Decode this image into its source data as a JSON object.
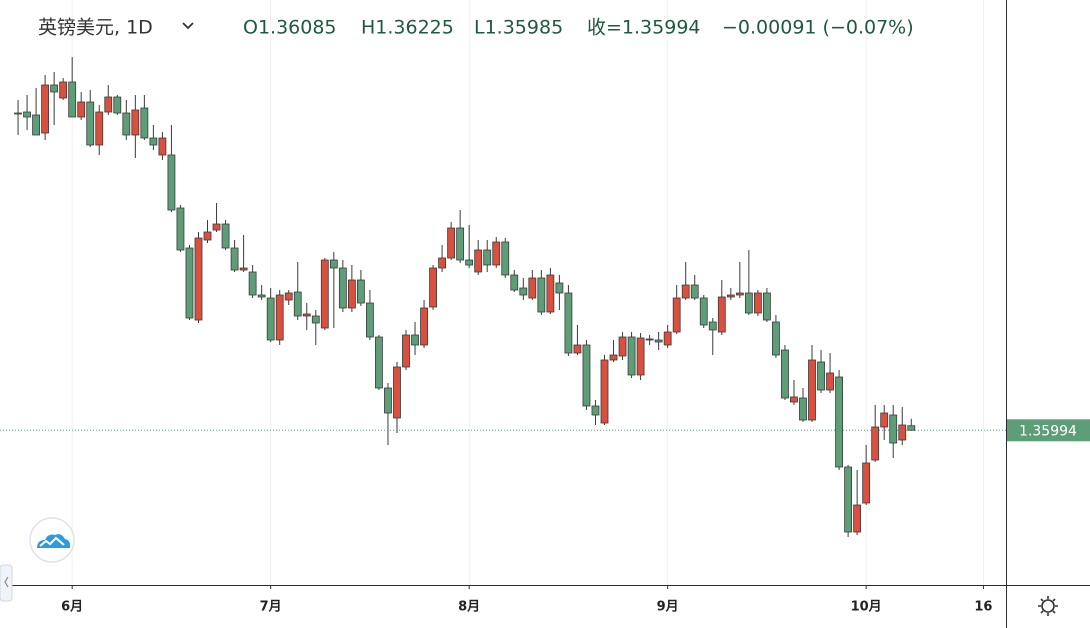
{
  "chart_data": {
    "type": "candlestick",
    "title": "英镑美元, 1D",
    "header_labels": [
      "O1.36085",
      "H1.36225",
      "L1.35985",
      "收=1.35994",
      "−0.00091 (−0.07%)"
    ],
    "up_color": "#d9503f",
    "down_color": "#5d9e79",
    "xlim": [
      -2,
      109.5
    ],
    "xticks": [
      {
        "value": 6,
        "label": "6月"
      },
      {
        "value": 28,
        "label": "7月"
      },
      {
        "value": 50,
        "label": "8月"
      },
      {
        "value": 72,
        "label": "9月"
      },
      {
        "value": 94,
        "label": "10月"
      },
      {
        "value": 107,
        "label": "16"
      }
    ],
    "ylim": [
      1.329,
      1.446
    ],
    "grid": true,
    "x": [
      0,
      1,
      2,
      3,
      4,
      5,
      6,
      7,
      8,
      9,
      10,
      11,
      12,
      13,
      14,
      15,
      16,
      17,
      18,
      19,
      20,
      21,
      22,
      23,
      24,
      25,
      26,
      27,
      28,
      29,
      30,
      31,
      32,
      33,
      34,
      35,
      36,
      37,
      38,
      39,
      40,
      41,
      42,
      43,
      44,
      45,
      46,
      47,
      48,
      49,
      50,
      51,
      52,
      53,
      54,
      55,
      56,
      57,
      58,
      59,
      60,
      61,
      62,
      63,
      64,
      65,
      66,
      67,
      68,
      69,
      70,
      71,
      72,
      73,
      74,
      75,
      76,
      77,
      78,
      79,
      80,
      81,
      82,
      83,
      84,
      85,
      86,
      87,
      88,
      89,
      90,
      91,
      92,
      93,
      94,
      95,
      96,
      97,
      98,
      99
    ],
    "open": [
      1.4234,
      1.4236,
      1.423,
      1.4194,
      1.429,
      1.4264,
      1.4296,
      1.4226,
      1.4256,
      1.417,
      1.4236,
      1.4266,
      1.4234,
      1.419,
      1.4244,
      1.4184,
      1.415,
      1.415,
      1.4044,
      1.3964,
      1.382,
      1.398,
      1.4,
      1.4012,
      1.3964,
      1.392,
      1.3916,
      1.387,
      1.3864,
      1.378,
      1.386,
      1.3876,
      1.3828,
      1.3828,
      1.3804,
      1.394,
      1.3924,
      1.3844,
      1.39,
      1.3854,
      1.3786,
      1.3684,
      1.3624,
      1.3726,
      1.379,
      1.377,
      1.3846,
      1.3924,
      1.3944,
      1.4004,
      1.394,
      1.3916,
      1.396,
      1.393,
      1.3976,
      1.391,
      1.3884,
      1.3864,
      1.3904,
      1.3836,
      1.3894,
      1.3874,
      1.3754,
      1.377,
      1.3648,
      1.3614,
      1.374,
      1.3748,
      1.3786,
      1.371,
      1.378,
      1.378,
      1.377,
      1.3796,
      1.3864,
      1.389,
      1.3864,
      1.3816,
      1.3796,
      1.3866,
      1.387,
      1.3874,
      1.3834,
      1.3874,
      1.3816,
      1.376,
      1.3656,
      1.3664,
      1.362,
      1.3736,
      1.368,
      1.3706,
      1.3526,
      1.3396,
      1.3454,
      1.354,
      1.3606,
      1.363,
      1.358,
      1.36085
    ],
    "high": [
      1.426,
      1.427,
      1.4284,
      1.431,
      1.4316,
      1.4304,
      1.4346,
      1.4276,
      1.428,
      1.425,
      1.429,
      1.427,
      1.426,
      1.427,
      1.427,
      1.421,
      1.4196,
      1.421,
      1.405,
      1.397,
      1.3996,
      1.402,
      1.4054,
      1.402,
      1.398,
      1.399,
      1.393,
      1.389,
      1.3884,
      1.388,
      1.388,
      1.3936,
      1.3854,
      1.384,
      1.3944,
      1.3956,
      1.394,
      1.393,
      1.392,
      1.388,
      1.379,
      1.3694,
      1.3736,
      1.38,
      1.3816,
      1.386,
      1.393,
      1.397,
      1.4016,
      1.404,
      1.401,
      1.398,
      1.398,
      1.3986,
      1.3984,
      1.392,
      1.3904,
      1.392,
      1.392,
      1.3924,
      1.391,
      1.389,
      1.381,
      1.378,
      1.366,
      1.375,
      1.378,
      1.3796,
      1.3796,
      1.3794,
      1.379,
      1.3796,
      1.381,
      1.389,
      1.3936,
      1.391,
      1.387,
      1.3824,
      1.39,
      1.3884,
      1.3936,
      1.396,
      1.388,
      1.3884,
      1.383,
      1.377,
      1.37,
      1.3684,
      1.377,
      1.376,
      1.3754,
      1.372,
      1.353,
      1.352,
      1.357,
      1.365,
      1.365,
      1.365,
      1.3646,
      1.36225
    ],
    "low": [
      1.419,
      1.42,
      1.419,
      1.418,
      1.421,
      1.426,
      1.4226,
      1.422,
      1.4166,
      1.415,
      1.423,
      1.423,
      1.418,
      1.4144,
      1.418,
      1.416,
      1.414,
      1.4036,
      1.3956,
      1.382,
      1.3814,
      1.3974,
      1.3996,
      1.396,
      1.3916,
      1.3916,
      1.3864,
      1.386,
      1.3776,
      1.377,
      1.385,
      1.382,
      1.38,
      1.377,
      1.38,
      1.3804,
      1.3836,
      1.3836,
      1.3848,
      1.378,
      1.368,
      1.357,
      1.3594,
      1.372,
      1.375,
      1.3764,
      1.384,
      1.3916,
      1.394,
      1.3934,
      1.3924,
      1.391,
      1.3916,
      1.3924,
      1.3904,
      1.3876,
      1.386,
      1.386,
      1.383,
      1.3832,
      1.384,
      1.3748,
      1.375,
      1.364,
      1.361,
      1.361,
      1.3736,
      1.374,
      1.3704,
      1.37,
      1.377,
      1.376,
      1.3764,
      1.3792,
      1.386,
      1.386,
      1.3804,
      1.375,
      1.379,
      1.386,
      1.3864,
      1.383,
      1.3828,
      1.3816,
      1.3744,
      1.366,
      1.365,
      1.3616,
      1.3616,
      1.3674,
      1.3674,
      1.352,
      1.3386,
      1.339,
      1.345,
      1.3536,
      1.358,
      1.3544,
      1.357,
      1.35985
    ],
    "close": [
      1.4232,
      1.4226,
      1.419,
      1.429,
      1.4276,
      1.4296,
      1.4226,
      1.4256,
      1.417,
      1.4236,
      1.4266,
      1.4234,
      1.419,
      1.424,
      1.4184,
      1.417,
      1.4184,
      1.404,
      1.396,
      1.3824,
      1.3984,
      1.3996,
      1.4012,
      1.3964,
      1.392,
      1.3924,
      1.387,
      1.3866,
      1.378,
      1.387,
      1.3874,
      1.3828,
      1.3832,
      1.3814,
      1.394,
      1.3924,
      1.3844,
      1.39,
      1.3854,
      1.3786,
      1.3684,
      1.3634,
      1.3726,
      1.379,
      1.377,
      1.3844,
      1.3924,
      1.3944,
      1.4004,
      1.394,
      1.393,
      1.396,
      1.393,
      1.3976,
      1.391,
      1.388,
      1.387,
      1.3904,
      1.3836,
      1.391,
      1.3874,
      1.3754,
      1.377,
      1.3648,
      1.363,
      1.374,
      1.375,
      1.3786,
      1.371,
      1.3784,
      1.3782,
      1.3776,
      1.3796,
      1.3864,
      1.389,
      1.3864,
      1.381,
      1.38,
      1.3866,
      1.387,
      1.3874,
      1.3834,
      1.3874,
      1.382,
      1.375,
      1.3664,
      1.3666,
      1.362,
      1.374,
      1.368,
      1.3714,
      1.3526,
      1.3396,
      1.345,
      1.3534,
      1.3606,
      1.3634,
      1.3574,
      1.361,
      1.35994
    ]
  }
}
